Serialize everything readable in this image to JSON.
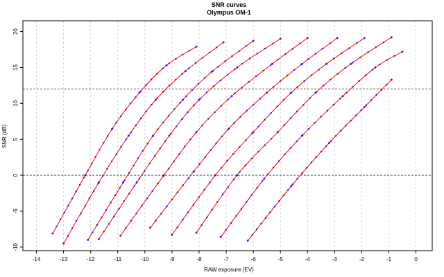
{
  "chart_data": {
    "type": "line",
    "title": "SNR curves",
    "subtitle": "Olympus OM-1",
    "xlabel": "RAW exposure (EV)",
    "ylabel": "SNR (dB)",
    "xlim": [
      -14.5,
      0.6
    ],
    "ylim": [
      -10.5,
      21.5
    ],
    "x_ticks": [
      -14,
      -13,
      -12,
      -11,
      -10,
      -9,
      -8,
      -7,
      -6,
      -5,
      -4,
      -3,
      -2,
      -1,
      0
    ],
    "y_ticks": [
      -10,
      -5,
      0,
      5,
      10,
      15,
      20
    ],
    "grid_x": true,
    "grid_y": false,
    "reference_lines": [
      0,
      12
    ],
    "line_color": "#ff0000",
    "point_color": "#4000d0",
    "reference_line_color": "#333333",
    "grid_color": "#c8c8c8",
    "series": [
      {
        "x": [
          -13.4,
          -12.2,
          -11.2,
          -10.2,
          -9.2,
          -8.1
        ],
        "y": [
          -8.1,
          0.0,
          6.5,
          11.5,
          15.3,
          17.9
        ]
      },
      {
        "x": [
          -13.0,
          -11.7,
          -10.6,
          -9.6,
          -8.5,
          -7.1
        ],
        "y": [
          -9.5,
          -1.0,
          5.5,
          10.5,
          14.5,
          18.5
        ]
      },
      {
        "x": [
          -12.1,
          -10.8,
          -9.7,
          -8.6,
          -7.5,
          -6.0
        ],
        "y": [
          -9.0,
          -1.0,
          5.5,
          10.5,
          14.5,
          18.7
        ]
      },
      {
        "x": [
          -11.7,
          -10.3,
          -9.1,
          -8.0,
          -6.6,
          -5.0
        ],
        "y": [
          -8.9,
          -1.0,
          5.5,
          10.5,
          15.0,
          19.0
        ]
      },
      {
        "x": [
          -10.9,
          -9.3,
          -8.1,
          -6.8,
          -5.3,
          -4.0
        ],
        "y": [
          -8.4,
          0.0,
          6.0,
          11.0,
          15.5,
          19.1
        ]
      },
      {
        "x": [
          -9.8,
          -8.2,
          -6.9,
          -5.5,
          -4.2,
          -2.9
        ],
        "y": [
          -7.3,
          0.5,
          6.5,
          11.5,
          15.5,
          19.1
        ]
      },
      {
        "x": [
          -9.0,
          -7.4,
          -6.0,
          -4.6,
          -3.3,
          -1.9
        ],
        "y": [
          -8.3,
          0.0,
          6.0,
          11.5,
          15.5,
          19.1
        ]
      },
      {
        "x": [
          -8.1,
          -6.6,
          -5.1,
          -3.7,
          -2.4,
          -0.9
        ],
        "y": [
          -8.0,
          0.0,
          6.0,
          11.5,
          15.5,
          19.2
        ]
      },
      {
        "x": [
          -7.2,
          -5.6,
          -4.2,
          -2.7,
          -1.5,
          -0.5
        ],
        "y": [
          -8.6,
          -0.5,
          5.5,
          11.0,
          15.0,
          17.2
        ]
      },
      {
        "x": [
          -6.2,
          -4.6,
          -3.2,
          -1.9,
          -0.9
        ],
        "y": [
          -9.1,
          -1.5,
          4.5,
          9.5,
          13.3
        ]
      }
    ]
  }
}
